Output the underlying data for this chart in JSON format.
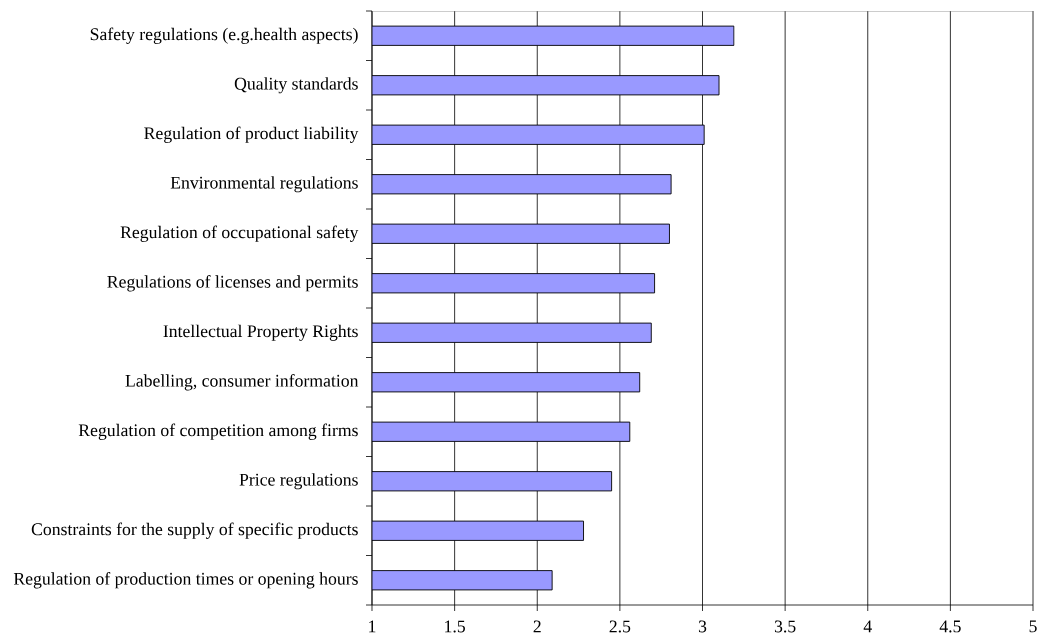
{
  "chart_data": {
    "type": "bar",
    "orientation": "horizontal",
    "categories": [
      "Safety regulations (e.g.health aspects)",
      "Quality standards",
      "Regulation of product liability",
      "Environmental regulations",
      "Regulation of occupational safety",
      "Regulations of licenses and permits",
      "Intellectual Property Rights",
      "Labelling, consumer information",
      "Regulation of competition among firms",
      "Price regulations",
      "Constraints for the supply of specific products",
      "Regulation of production times or opening hours"
    ],
    "values": [
      3.19,
      3.1,
      3.01,
      2.81,
      2.8,
      2.71,
      2.69,
      2.62,
      2.56,
      2.45,
      2.28,
      2.09
    ],
    "color": "#9999ff",
    "xlim": [
      1,
      5
    ],
    "xticks": [
      1,
      1.5,
      2,
      2.5,
      3,
      3.5,
      4,
      4.5,
      5
    ],
    "grid": "x"
  }
}
